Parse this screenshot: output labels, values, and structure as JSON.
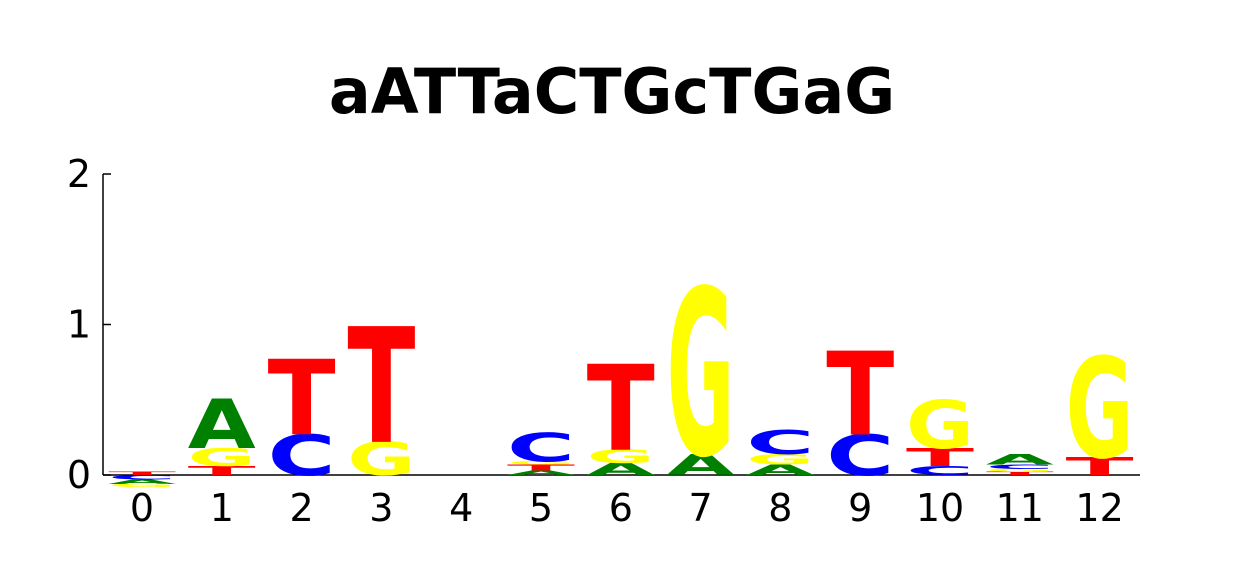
{
  "chart_data": {
    "type": "sequence-logo",
    "title": "aATTaCTGcTGaG",
    "x_ticks": [
      "0",
      "1",
      "2",
      "3",
      "4",
      "5",
      "6",
      "7",
      "8",
      "9",
      "10",
      "11",
      "12"
    ],
    "y_ticks": [
      "0",
      "1",
      "2"
    ],
    "ylim": [
      0,
      2
    ],
    "colors": {
      "A": "#008000",
      "C": "#0000ff",
      "G": "#ffff00",
      "T": "#ff0000"
    },
    "positions": [
      {
        "pos": "0",
        "above": [
          [
            "T",
            0.02
          ]
        ],
        "below": [
          [
            "C",
            0.03
          ],
          [
            "A",
            0.03
          ],
          [
            "G",
            0.02
          ]
        ]
      },
      {
        "pos": "1",
        "above": [
          [
            "T",
            0.06
          ],
          [
            "G",
            0.12
          ],
          [
            "A",
            0.33
          ]
        ],
        "below": []
      },
      {
        "pos": "2",
        "above": [
          [
            "C",
            0.27
          ],
          [
            "T",
            0.5
          ]
        ],
        "below": []
      },
      {
        "pos": "3",
        "above": [
          [
            "G",
            0.22
          ],
          [
            "T",
            0.77
          ]
        ],
        "below": []
      },
      {
        "pos": "4",
        "above": [],
        "below": []
      },
      {
        "pos": "5",
        "above": [
          [
            "A",
            0.03
          ],
          [
            "T",
            0.04
          ],
          [
            "G",
            0.02
          ],
          [
            "C",
            0.19
          ]
        ],
        "below": []
      },
      {
        "pos": "6",
        "above": [
          [
            "A",
            0.08
          ],
          [
            "G",
            0.09
          ],
          [
            "T",
            0.57
          ]
        ],
        "below": []
      },
      {
        "pos": "7",
        "above": [
          [
            "A",
            0.14
          ],
          [
            "G",
            1.11
          ]
        ],
        "below": []
      },
      {
        "pos": "8",
        "above": [
          [
            "A",
            0.07
          ],
          [
            "G",
            0.07
          ],
          [
            "C",
            0.16
          ]
        ],
        "below": []
      },
      {
        "pos": "9",
        "above": [
          [
            "C",
            0.27
          ],
          [
            "T",
            0.56
          ]
        ],
        "below": []
      },
      {
        "pos": "10",
        "above": [
          [
            "C",
            0.06
          ],
          [
            "T",
            0.12
          ],
          [
            "G",
            0.32
          ]
        ],
        "below": []
      },
      {
        "pos": "11",
        "above": [
          [
            "T",
            0.02
          ],
          [
            "G",
            0.02
          ],
          [
            "C",
            0.03
          ],
          [
            "A",
            0.07
          ]
        ],
        "below": []
      },
      {
        "pos": "12",
        "above": [
          [
            "T",
            0.12
          ],
          [
            "G",
            0.67
          ]
        ],
        "below": []
      }
    ]
  }
}
